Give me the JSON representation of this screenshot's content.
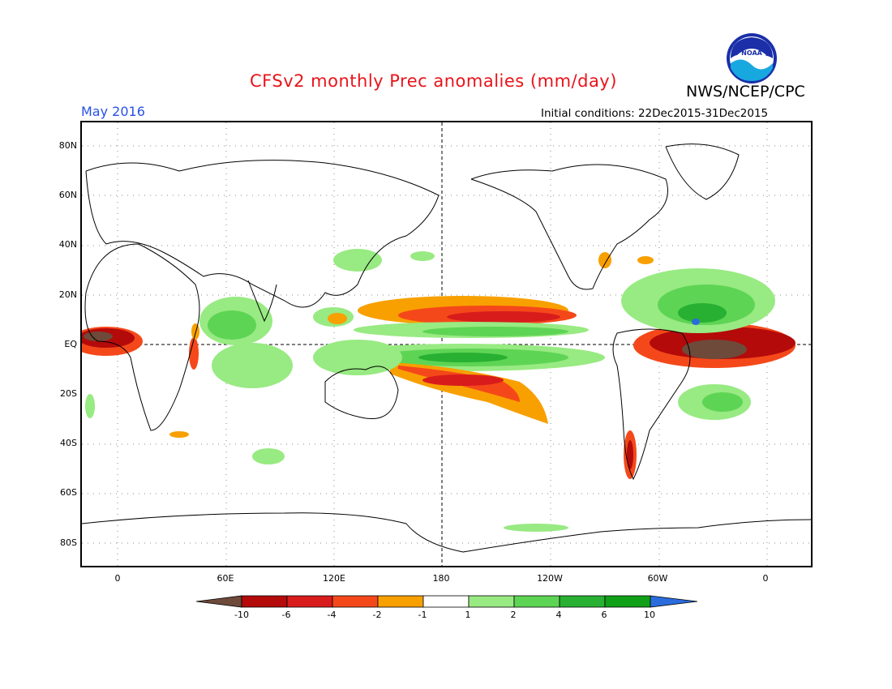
{
  "header": {
    "title": "CFSv2 monthly Prec anomalies (mm/day)",
    "agency": "NWS/NCEP/CPC",
    "valid_month": "May 2016",
    "initial_conditions": "Initial conditions: 22Dec2015-31Dec2015",
    "logo_text": "NOAA"
  },
  "map": {
    "lat_labels": [
      "80N",
      "60N",
      "40N",
      "20N",
      "EQ",
      "20S",
      "40S",
      "60S",
      "80S"
    ],
    "lon_labels": [
      "0",
      "60E",
      "120E",
      "180",
      "120W",
      "60W",
      "0"
    ]
  },
  "legend": {
    "labels": [
      "-10",
      "-6",
      "-4",
      "-2",
      "-1",
      "1",
      "2",
      "4",
      "6",
      "10"
    ],
    "colors": [
      "#6e4a3a",
      "#b40a0a",
      "#d81c1c",
      "#f5481a",
      "#f8a000",
      "#ffffff",
      "#98ea82",
      "#5ed454",
      "#28b032",
      "#10a018",
      "#2a6cdc"
    ]
  }
}
